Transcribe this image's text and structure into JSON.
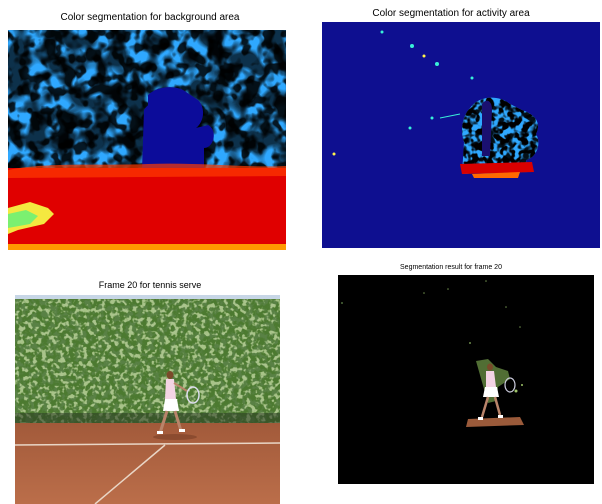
{
  "figure": {
    "panels": [
      {
        "caption": "Color segmentation for background area"
      },
      {
        "caption": "Color segmentation for activity area"
      },
      {
        "caption": "Frame 20 for tennis serve"
      },
      {
        "caption": "Segmentation result for frame 20"
      }
    ]
  }
}
